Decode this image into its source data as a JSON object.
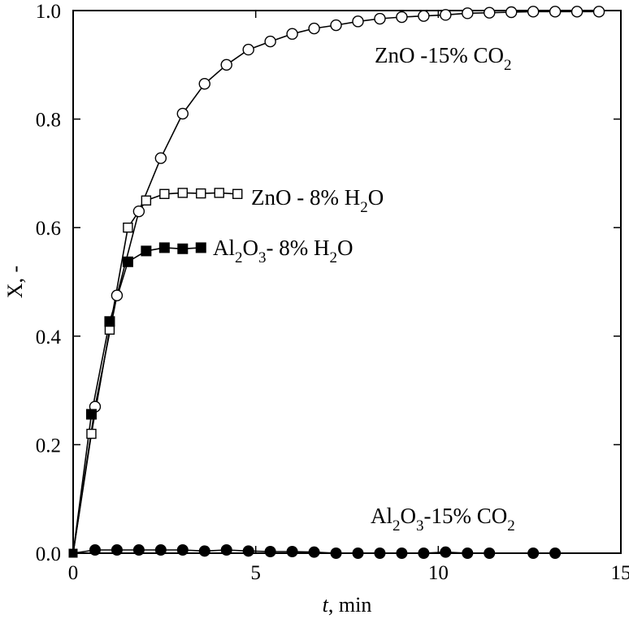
{
  "chart_data": {
    "type": "line",
    "xlabel_var": "t",
    "xlabel_unit": ", min",
    "ylabel": "X, -",
    "xlim": [
      0,
      15
    ],
    "ylim": [
      0,
      1.0
    ],
    "x_ticks": [
      0,
      5,
      10,
      15
    ],
    "x_tick_labels": [
      "0",
      "5",
      "10",
      "15"
    ],
    "y_ticks": [
      0,
      0.2,
      0.4,
      0.6,
      0.8,
      1.0
    ],
    "y_tick_labels": [
      "0.0",
      "0.2",
      "0.4",
      "0.6",
      "0.8",
      "1.0"
    ],
    "grid": false,
    "series": [
      {
        "name": "ZnO - 15% CO2",
        "marker": "open-circle",
        "x": [
          0,
          0.6,
          1.2,
          1.8,
          2.4,
          3.0,
          3.6,
          4.2,
          4.8,
          5.4,
          6.0,
          6.6,
          7.2,
          7.8,
          8.4,
          9.0,
          9.6,
          10.2,
          10.8,
          11.4,
          12.0,
          12.6,
          13.2,
          13.8,
          14.4
        ],
        "y": [
          0,
          0.27,
          0.475,
          0.63,
          0.728,
          0.81,
          0.865,
          0.9,
          0.928,
          0.943,
          0.957,
          0.967,
          0.973,
          0.98,
          0.985,
          0.988,
          0.99,
          0.992,
          0.995,
          0.996,
          0.997,
          0.998,
          0.998,
          0.998,
          0.998
        ]
      },
      {
        "name": "ZnO - 8% H2O",
        "marker": "open-square",
        "x": [
          0,
          0.5,
          1.0,
          1.5,
          2.0,
          2.5,
          3.0,
          3.5,
          4.0,
          4.5
        ],
        "y": [
          0,
          0.22,
          0.412,
          0.6,
          0.65,
          0.662,
          0.664,
          0.663,
          0.664,
          0.662
        ]
      },
      {
        "name": "Al2O3 - 8% H2O",
        "marker": "filled-square",
        "x": [
          0,
          0.5,
          1.0,
          1.5,
          2.0,
          2.5,
          3.0,
          3.5
        ],
        "y": [
          0,
          0.256,
          0.427,
          0.537,
          0.557,
          0.563,
          0.561,
          0.563
        ]
      },
      {
        "name": "Al2O3 - 15% CO2",
        "marker": "filled-circle",
        "x": [
          0,
          0.6,
          1.2,
          1.8,
          2.4,
          3.0,
          3.6,
          4.2,
          4.8,
          5.4,
          6.0,
          6.6,
          7.2,
          7.8,
          8.4,
          9.0,
          9.6,
          10.2,
          10.8,
          11.4,
          12.6,
          13.2
        ],
        "y": [
          0,
          0.006,
          0.006,
          0.006,
          0.006,
          0.006,
          0.004,
          0.006,
          0.004,
          0.003,
          0.003,
          0.002,
          0.0,
          0.0,
          0.0,
          0.0,
          0.0,
          0.002,
          0.0,
          0.0,
          0.0,
          0.0
        ]
      }
    ],
    "annotations": [
      {
        "id": "zno-co2",
        "parts": [
          "ZnO -15% CO",
          "2"
        ]
      },
      {
        "id": "zno-h2o",
        "parts": [
          "ZnO - 8% H",
          "2",
          "O"
        ]
      },
      {
        "id": "al-h2o",
        "parts": [
          "Al",
          "2",
          "O",
          "3",
          "- 8% H",
          "2",
          "O"
        ]
      },
      {
        "id": "al-co2",
        "parts": [
          "Al",
          "2",
          "O",
          "3",
          "-15% CO",
          "2"
        ]
      }
    ]
  }
}
